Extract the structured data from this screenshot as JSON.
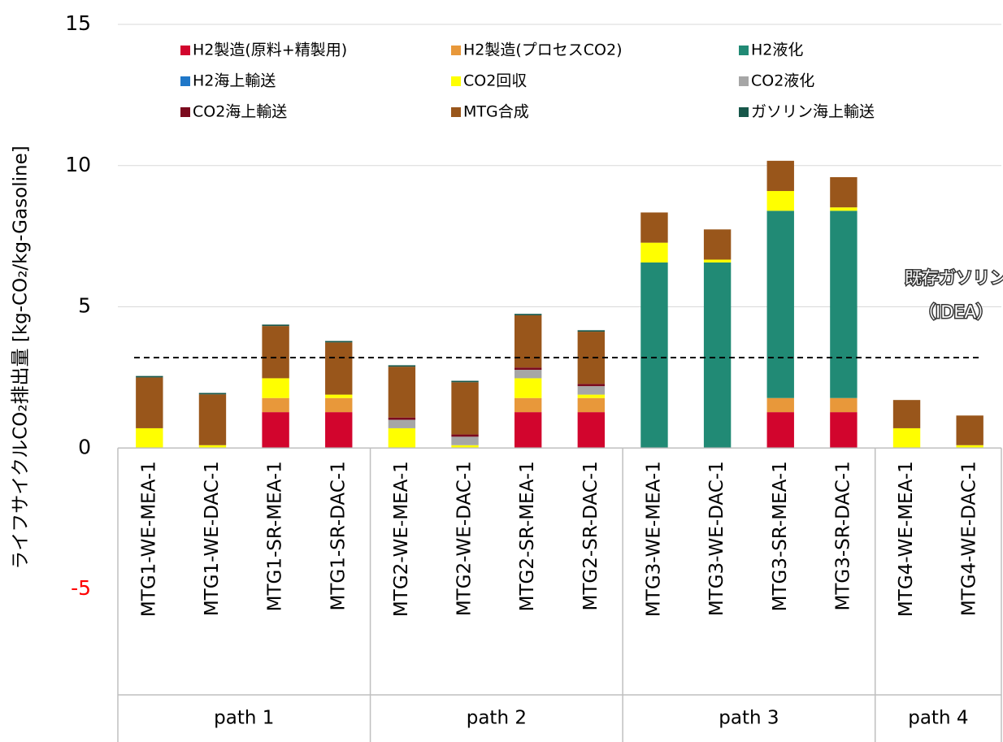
{
  "chart_data": {
    "type": "stacked_bar",
    "y_axis_label": "ライフサイクルCO₂排出量 [kg-CO₂/kg-Gasoline]",
    "groups": [
      {
        "label": "path 1",
        "categories": [
          "MTG1-WE-MEA-1",
          "MTG1-WE-DAC-1",
          "MTG1-SR-MEA-1",
          "MTG1-SR-DAC-1"
        ]
      },
      {
        "label": "path 2",
        "categories": [
          "MTG2-WE-MEA-1",
          "MTG2-WE-DAC-1",
          "MTG2-SR-MEA-1",
          "MTG2-SR-DAC-1"
        ]
      },
      {
        "label": "path 3",
        "categories": [
          "MTG3-WE-MEA-1",
          "MTG3-WE-DAC-1",
          "MTG3-SR-MEA-1",
          "MTG3-SR-DAC-1"
        ]
      },
      {
        "label": "path 4",
        "categories": [
          "MTG4-WE-MEA-1",
          "MTG4-WE-DAC-1"
        ]
      }
    ],
    "series": [
      {
        "name": "H2製造(原料+精製用)",
        "color": "#d2052d",
        "values": [
          0,
          0,
          1.27,
          1.27,
          0,
          0,
          1.27,
          1.27,
          0,
          0,
          1.27,
          1.27,
          0,
          0
        ]
      },
      {
        "name": "H2製造(プロセスCO2)",
        "color": "#e8983a",
        "values": [
          0,
          0,
          0.5,
          0.5,
          0,
          0,
          0.5,
          0.5,
          0,
          0,
          0.5,
          0.5,
          0,
          0
        ]
      },
      {
        "name": "H2液化",
        "color": "#218a75",
        "values": [
          0,
          0,
          0,
          0,
          0,
          0,
          0,
          0,
          6.57,
          6.57,
          6.63,
          6.63,
          0,
          0
        ]
      },
      {
        "name": "H2海上輸送",
        "color": "#1f77c8",
        "values": [
          0,
          0,
          0,
          0,
          0,
          0,
          0,
          0,
          0,
          0,
          0,
          0,
          0,
          0
        ]
      },
      {
        "name": "CO2回収",
        "color": "#ffff00",
        "values": [
          0.7,
          0.1,
          0.7,
          0.12,
          0.7,
          0.1,
          0.7,
          0.12,
          0.7,
          0.1,
          0.7,
          0.12,
          0.7,
          0.1
        ]
      },
      {
        "name": "CO2液化",
        "color": "#a6a6a6",
        "values": [
          0,
          0,
          0,
          0,
          0.3,
          0.3,
          0.3,
          0.3,
          0,
          0,
          0,
          0,
          0,
          0
        ]
      },
      {
        "name": "CO2海上輸送",
        "color": "#7b0a1e",
        "values": [
          0,
          0,
          0,
          0,
          0.08,
          0.08,
          0.08,
          0.08,
          0,
          0,
          0,
          0,
          0,
          0
        ]
      },
      {
        "name": "MTG合成",
        "color": "#99561b",
        "values": [
          1.8,
          1.8,
          1.85,
          1.85,
          1.8,
          1.85,
          1.85,
          1.85,
          1.07,
          1.07,
          1.07,
          1.07,
          1.0,
          1.05
        ]
      },
      {
        "name": "ガソリン海上輸送",
        "color": "#17574a",
        "values": [
          0.05,
          0.05,
          0.05,
          0.05,
          0.05,
          0.05,
          0.05,
          0.05,
          0,
          0,
          0,
          0,
          0,
          0
        ]
      }
    ],
    "ylim": [
      -5,
      15
    ],
    "yticks": [
      -5,
      0,
      5,
      10,
      15
    ],
    "negative_tick_color": "#ff0000",
    "grid": true,
    "reference_line": {
      "value": 3.2,
      "label": [
        "既存ガソリン",
        "（IDEA）"
      ]
    }
  }
}
